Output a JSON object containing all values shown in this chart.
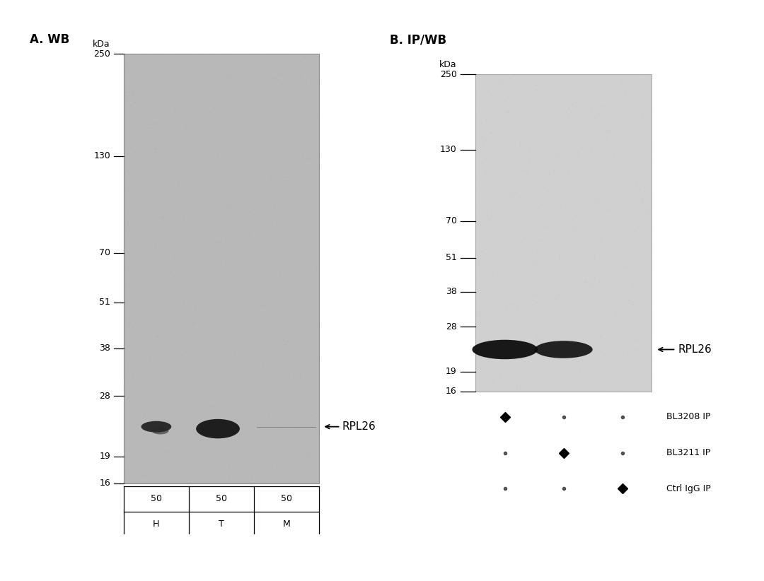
{
  "panel_A_title": "A. WB",
  "panel_B_title": "B. IP/WB",
  "white_bg": "#ffffff",
  "panel_A": {
    "gel_facecolor": "#b8b8b8",
    "kda_labels": [
      "250",
      "130",
      "70",
      "51",
      "38",
      "28",
      "19",
      "16"
    ],
    "kda_values": [
      250,
      130,
      70,
      51,
      38,
      28,
      19,
      16
    ],
    "band_label": "←RPL26",
    "band_kda": 23,
    "lane_labels": [
      "H",
      "T",
      "M"
    ],
    "lane_amounts": [
      "50",
      "50",
      "50"
    ]
  },
  "panel_B": {
    "gel_facecolor": "#d0d0d0",
    "kda_labels": [
      "250",
      "130",
      "70",
      "51",
      "38",
      "28",
      "19",
      "16"
    ],
    "kda_values": [
      250,
      130,
      70,
      51,
      38,
      28,
      19,
      16
    ],
    "band_label": "←RPL26",
    "band_kda": 23,
    "legend_rows": [
      {
        "label": "BL3208 IP",
        "big_col": 0
      },
      {
        "label": "BL3211 IP",
        "big_col": 1
      },
      {
        "label": "Ctrl IgG IP",
        "big_col": 2
      }
    ]
  },
  "font_family": "DejaVu Sans",
  "title_fontsize": 12,
  "tick_fontsize": 9,
  "annotation_fontsize": 11
}
